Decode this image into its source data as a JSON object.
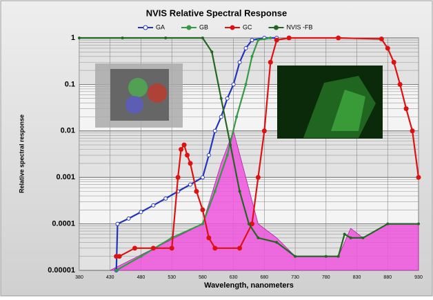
{
  "chart_data": {
    "type": "line",
    "title": "NVIS Relative Spectral Response",
    "xlabel": "Wavelength, nanometers",
    "ylabel": "Relative spectral response",
    "xlim": [
      380,
      930
    ],
    "xticks": [
      380,
      430,
      480,
      530,
      580,
      630,
      680,
      730,
      780,
      830,
      880,
      930
    ],
    "ylim": [
      1e-05,
      1
    ],
    "yticks": [
      1e-05,
      0.0001,
      0.001,
      0.01,
      0.1,
      1
    ],
    "log_y": true,
    "grid": true,
    "legend": "top",
    "series": [
      {
        "color": "#ee55dd",
        "fill": true,
        "x": [
          430,
          580,
          610,
          630,
          650,
          670,
          700,
          730,
          800,
          810,
          820,
          840,
          880,
          930
        ],
        "values": [
          1e-05,
          0.0001,
          0.002,
          0.01,
          0.001,
          0.0001,
          5e-05,
          2e-05,
          2e-05,
          4e-05,
          8e-05,
          5e-05,
          0.0001,
          0.0001
        ]
      },
      {
        "name": "GA",
        "color": "#2233bb",
        "x": [
          440,
          442,
          460,
          480,
          500,
          520,
          540,
          560,
          580,
          590,
          600,
          610,
          620,
          630,
          640,
          650,
          660,
          680,
          700
        ],
        "values": [
          1e-05,
          0.0001,
          0.00013,
          0.00018,
          0.00025,
          0.00035,
          0.0005,
          0.0007,
          0.001,
          0.003,
          0.01,
          0.02,
          0.05,
          0.1,
          0.3,
          0.6,
          0.9,
          1,
          1
        ]
      },
      {
        "name": "GB",
        "color": "#339944",
        "x": [
          440,
          480,
          530,
          580,
          600,
          620,
          635,
          650,
          660,
          670,
          690
        ],
        "values": [
          1e-05,
          2e-05,
          5e-05,
          0.0001,
          0.0005,
          0.003,
          0.02,
          0.1,
          0.4,
          0.9,
          1
        ]
      },
      {
        "name": "GC",
        "color": "#dd1111",
        "x": [
          440,
          445,
          470,
          500,
          530,
          540,
          545,
          550,
          555,
          560,
          570,
          580,
          590,
          600,
          640,
          660,
          670,
          680,
          690,
          700,
          720,
          800,
          870,
          880,
          890,
          900,
          910,
          920,
          930
        ],
        "values": [
          2e-05,
          2e-05,
          3e-05,
          3e-05,
          3e-05,
          0.001,
          0.004,
          0.005,
          0.003,
          0.002,
          0.0005,
          0.0002,
          5e-05,
          3e-05,
          3e-05,
          0.0001,
          0.001,
          0.01,
          0.3,
          0.9,
          1,
          1,
          0.95,
          0.6,
          0.3,
          0.1,
          0.03,
          0.01,
          0.001
        ]
      },
      {
        "name": "NVIS -FB",
        "color": "#226622",
        "x": [
          380,
          450,
          520,
          580,
          595,
          610,
          625,
          640,
          655,
          670,
          700,
          730,
          780,
          800,
          810,
          820,
          840,
          880,
          930
        ],
        "values": [
          1,
          1,
          1,
          1,
          0.5,
          0.05,
          0.005,
          0.0005,
          0.0001,
          5e-05,
          4e-05,
          2e-05,
          2e-05,
          2e-05,
          6e-05,
          5e-05,
          5e-05,
          0.0001,
          0.0001
        ]
      }
    ]
  }
}
